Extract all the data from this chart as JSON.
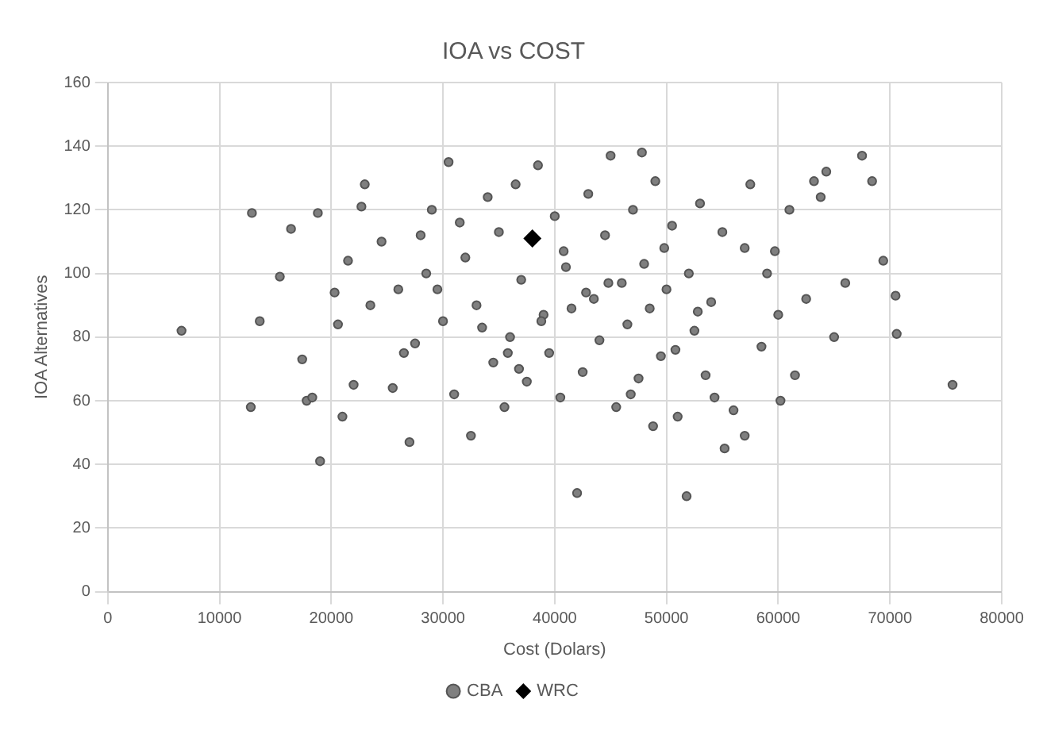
{
  "chart_data": {
    "type": "scatter",
    "title": "IOA vs COST",
    "xlabel": "Cost (Dolars)",
    "ylabel": "IOA Alternatives",
    "xlim": [
      0,
      80000
    ],
    "xticks": [
      0,
      10000,
      20000,
      30000,
      40000,
      50000,
      60000,
      70000,
      80000
    ],
    "ylim": [
      0,
      160
    ],
    "yticks": [
      0,
      20,
      40,
      60,
      80,
      100,
      120,
      140,
      160
    ],
    "grid": true,
    "legend": "bottom",
    "series": [
      {
        "name": "CBA",
        "color": "#7f7f7f",
        "marker": "circle",
        "x": [
          6600,
          12800,
          12900,
          13600,
          15400,
          16400,
          17400,
          17800,
          18300,
          19000,
          18800,
          20300,
          20600,
          21000,
          22700,
          23000,
          42000,
          51800,
          55200,
          61000,
          63200,
          63800,
          65000,
          66000,
          67500,
          68400,
          69400,
          70500,
          70600,
          75600,
          60200,
          57000,
          54300,
          64300,
          59700,
          62500,
          57000,
          24500,
          25500,
          26000,
          27000,
          27500,
          28500,
          29000,
          30000,
          30500,
          31000,
          32000,
          32500,
          33000,
          34000,
          34500,
          35000,
          35500,
          36000,
          36500,
          37000,
          37500,
          38500,
          39000,
          39500,
          40000,
          40500,
          41000,
          41500,
          42500,
          43000,
          43500,
          44000,
          44500,
          45000,
          45500,
          46000,
          46500,
          47000,
          47500,
          48000,
          48500,
          49000,
          49500,
          50000,
          50500,
          51000,
          52000,
          52500,
          53000,
          53500,
          54000,
          55000,
          56000,
          57500,
          58500,
          59000,
          60000,
          61500,
          22000,
          21500,
          23500,
          26500,
          28000,
          33500,
          36800,
          40800,
          44800,
          47800,
          31500,
          35800,
          38800,
          42800,
          46800,
          49800,
          52800,
          29500,
          48800,
          50800
        ],
        "values": [
          82,
          58,
          119,
          85,
          99,
          114,
          73,
          60,
          61,
          41,
          119,
          94,
          84,
          55,
          121,
          128,
          31,
          30,
          45,
          120,
          129,
          124,
          80,
          97,
          137,
          129,
          104,
          93,
          81,
          65,
          60,
          49,
          61,
          132,
          107,
          92,
          108,
          110,
          64,
          95,
          47,
          78,
          100,
          120,
          85,
          135,
          62,
          105,
          49,
          90,
          124,
          72,
          113,
          58,
          80,
          128,
          98,
          66,
          134,
          87,
          75,
          118,
          61,
          102,
          89,
          69,
          125,
          92,
          79,
          112,
          137,
          58,
          97,
          84,
          120,
          67,
          103,
          89,
          129,
          74,
          95,
          115,
          55,
          100,
          82,
          122,
          68,
          91,
          113,
          57,
          128,
          77,
          100,
          87,
          68,
          65,
          104,
          90,
          75,
          112,
          83,
          70,
          107,
          97,
          138,
          116,
          75,
          85,
          94,
          62,
          108,
          88,
          95,
          52,
          76
        ],
        "axis": "y"
      },
      {
        "name": "WRC",
        "color": "#000000",
        "marker": "diamond",
        "x": [
          38000
        ],
        "values": [
          111
        ],
        "axis": "y"
      }
    ]
  }
}
